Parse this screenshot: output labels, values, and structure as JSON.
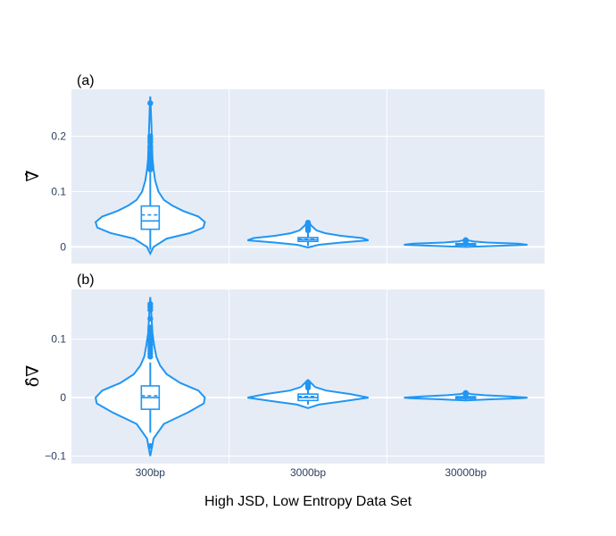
{
  "chart_data": [
    {
      "type": "violin",
      "panel_label": "(a)",
      "ylabel": "∇̂",
      "yticks": [
        0,
        0.1,
        0.2
      ],
      "ytick_labels": [
        "0",
        "0.1",
        "0.2"
      ],
      "ylim": [
        -0.03,
        0.285
      ],
      "grid": true,
      "categories": [
        "300bp",
        "3000bp",
        "30000bp"
      ],
      "violins": [
        {
          "category": "300bp",
          "min": -0.012,
          "max": 0.272,
          "q1": 0.032,
          "median": 0.047,
          "q3": 0.074,
          "mean": 0.058,
          "whisker_low": -0.005,
          "whisker_high": 0.135,
          "outliers": [
            0.26,
            0.2,
            0.195,
            0.19,
            0.18,
            0.17,
            0.165,
            0.16,
            0.155,
            0.15,
            0.145,
            0.14
          ],
          "profile": [
            [
              -0.012,
              0.0
            ],
            [
              0.0,
              0.06
            ],
            [
              0.015,
              0.3
            ],
            [
              0.025,
              0.72
            ],
            [
              0.035,
              0.97
            ],
            [
              0.045,
              1.0
            ],
            [
              0.055,
              0.88
            ],
            [
              0.065,
              0.6
            ],
            [
              0.075,
              0.4
            ],
            [
              0.085,
              0.25
            ],
            [
              0.1,
              0.15
            ],
            [
              0.12,
              0.09
            ],
            [
              0.14,
              0.06
            ],
            [
              0.16,
              0.04
            ],
            [
              0.19,
              0.03
            ],
            [
              0.22,
              0.02
            ],
            [
              0.25,
              0.01
            ],
            [
              0.272,
              0.0
            ]
          ],
          "max_half_width": 0.85
        },
        {
          "category": "3000bp",
          "min": -0.001,
          "max": 0.046,
          "q1": 0.01,
          "median": 0.013,
          "q3": 0.017,
          "mean": 0.014,
          "whisker_low": 0.002,
          "whisker_high": 0.028,
          "outliers": [
            0.03,
            0.033,
            0.036,
            0.039,
            0.042,
            0.044
          ],
          "profile": [
            [
              -0.001,
              0.0
            ],
            [
              0.004,
              0.18
            ],
            [
              0.008,
              0.55
            ],
            [
              0.012,
              1.0
            ],
            [
              0.016,
              0.9
            ],
            [
              0.02,
              0.55
            ],
            [
              0.025,
              0.28
            ],
            [
              0.03,
              0.14
            ],
            [
              0.037,
              0.07
            ],
            [
              0.046,
              0.0
            ]
          ],
          "max_half_width": 0.94
        },
        {
          "category": "30000bp",
          "min": 0.0,
          "max": 0.013,
          "q1": 0.0035,
          "median": 0.0045,
          "q3": 0.006,
          "mean": 0.005,
          "whisker_low": 0.001,
          "whisker_high": 0.009,
          "outliers": [
            0.0095,
            0.0105,
            0.0115,
            0.0125
          ],
          "profile": [
            [
              0.0,
              0.0
            ],
            [
              0.002,
              0.5
            ],
            [
              0.004,
              1.0
            ],
            [
              0.006,
              0.85
            ],
            [
              0.008,
              0.35
            ],
            [
              0.01,
              0.12
            ],
            [
              0.013,
              0.0
            ]
          ],
          "max_half_width": 0.96
        }
      ]
    },
    {
      "type": "violin",
      "panel_label": "(b)",
      "ylabel": "δ̂∇",
      "yticks": [
        -0.1,
        0,
        0.1
      ],
      "ytick_labels": [
        "−0.1",
        "0",
        "0.1"
      ],
      "ylim": [
        -0.113,
        0.185
      ],
      "grid": true,
      "categories": [
        "300bp",
        "3000bp",
        "30000bp"
      ],
      "violins": [
        {
          "category": "300bp",
          "min": -0.1,
          "max": 0.172,
          "q1": -0.02,
          "median": 0.0,
          "q3": 0.02,
          "mean": 0.003,
          "whisker_low": -0.06,
          "whisker_high": 0.06,
          "outliers": [
            -0.083,
            0.16,
            0.155,
            0.15,
            0.135,
            0.12,
            0.115,
            0.11,
            0.105,
            0.1,
            0.095,
            0.09,
            0.085,
            0.08,
            0.075,
            0.07
          ],
          "profile": [
            [
              -0.1,
              0.0
            ],
            [
              -0.07,
              0.06
            ],
            [
              -0.045,
              0.25
            ],
            [
              -0.025,
              0.7
            ],
            [
              -0.01,
              0.98
            ],
            [
              0.0,
              1.0
            ],
            [
              0.012,
              0.88
            ],
            [
              0.025,
              0.55
            ],
            [
              0.04,
              0.3
            ],
            [
              0.055,
              0.18
            ],
            [
              0.07,
              0.11
            ],
            [
              0.09,
              0.07
            ],
            [
              0.11,
              0.04
            ],
            [
              0.14,
              0.02
            ],
            [
              0.172,
              0.0
            ]
          ],
          "max_half_width": 0.85
        },
        {
          "category": "3000bp",
          "min": -0.018,
          "max": 0.03,
          "q1": -0.005,
          "median": 0.0,
          "q3": 0.006,
          "mean": 0.002,
          "whisker_low": -0.012,
          "whisker_high": 0.014,
          "outliers": [
            0.017,
            0.02,
            0.023,
            0.026
          ],
          "profile": [
            [
              -0.018,
              0.0
            ],
            [
              -0.012,
              0.18
            ],
            [
              -0.006,
              0.6
            ],
            [
              0.0,
              1.0
            ],
            [
              0.006,
              0.7
            ],
            [
              0.012,
              0.3
            ],
            [
              0.018,
              0.12
            ],
            [
              0.024,
              0.06
            ],
            [
              0.03,
              0.0
            ]
          ],
          "max_half_width": 0.94
        },
        {
          "category": "30000bp",
          "min": -0.005,
          "max": 0.009,
          "q1": -0.0015,
          "median": 0.0,
          "q3": 0.0015,
          "mean": 0.0005,
          "whisker_low": -0.004,
          "whisker_high": 0.004,
          "outliers": [
            0.005,
            0.0065,
            0.008
          ],
          "profile": [
            [
              -0.005,
              0.0
            ],
            [
              -0.003,
              0.4
            ],
            [
              -0.001,
              0.9
            ],
            [
              0.0,
              1.0
            ],
            [
              0.002,
              0.7
            ],
            [
              0.004,
              0.3
            ],
            [
              0.006,
              0.08
            ],
            [
              0.009,
              0.0
            ]
          ],
          "max_half_width": 0.96
        }
      ]
    }
  ],
  "xlabel": "High JSD, Low Entropy Data Set",
  "colors": {
    "violin": "#2196F3",
    "plot_bg": "#E5ECF6",
    "grid": "#ffffff"
  }
}
